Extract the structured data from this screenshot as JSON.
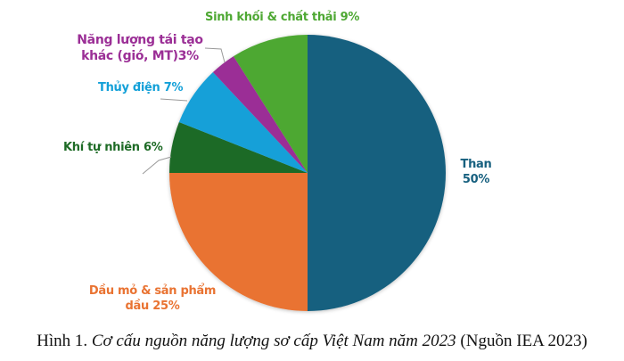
{
  "chart_data": {
    "type": "pie",
    "title": "",
    "start_angle_deg": 0,
    "direction": "clockwise",
    "slices": [
      {
        "label": "Than",
        "value": 50,
        "color": "#17607f"
      },
      {
        "label": "Dầu mỏ & sản phẩm dầu",
        "value": 25,
        "color": "#e97332"
      },
      {
        "label": "Khí tự nhiên",
        "value": 6,
        "color": "#1e6b26"
      },
      {
        "label": "Thủy điện",
        "value": 7,
        "color": "#13a0d8"
      },
      {
        "label": "Năng lượng tái tạo khác (gió, MT)",
        "value": 3,
        "color": "#9b2f96"
      },
      {
        "label": "Sinh khối & chất thải",
        "value": 9,
        "color": "#4ea833"
      }
    ],
    "unit": "%"
  },
  "labels": {
    "than_line1": "Than",
    "than_line2": "50%",
    "dau_line1": "Dầu mỏ & sản phẩm",
    "dau_line2": "dầu 25%",
    "khi": "Khí tự nhiên 6%",
    "thuy": "Thủy điện 7%",
    "nltt_line1": "Năng lượng tái tạo",
    "nltt_line2": "khác (gió, MT)3%",
    "sinh": "Sinh khối & chất thải 9%"
  },
  "caption": {
    "prefix": "Hình 1. ",
    "italic": "Cơ cấu nguồn năng lượng sơ cấp Việt Nam năm 2023",
    "suffix": " (Nguồn IEA 2023)"
  }
}
